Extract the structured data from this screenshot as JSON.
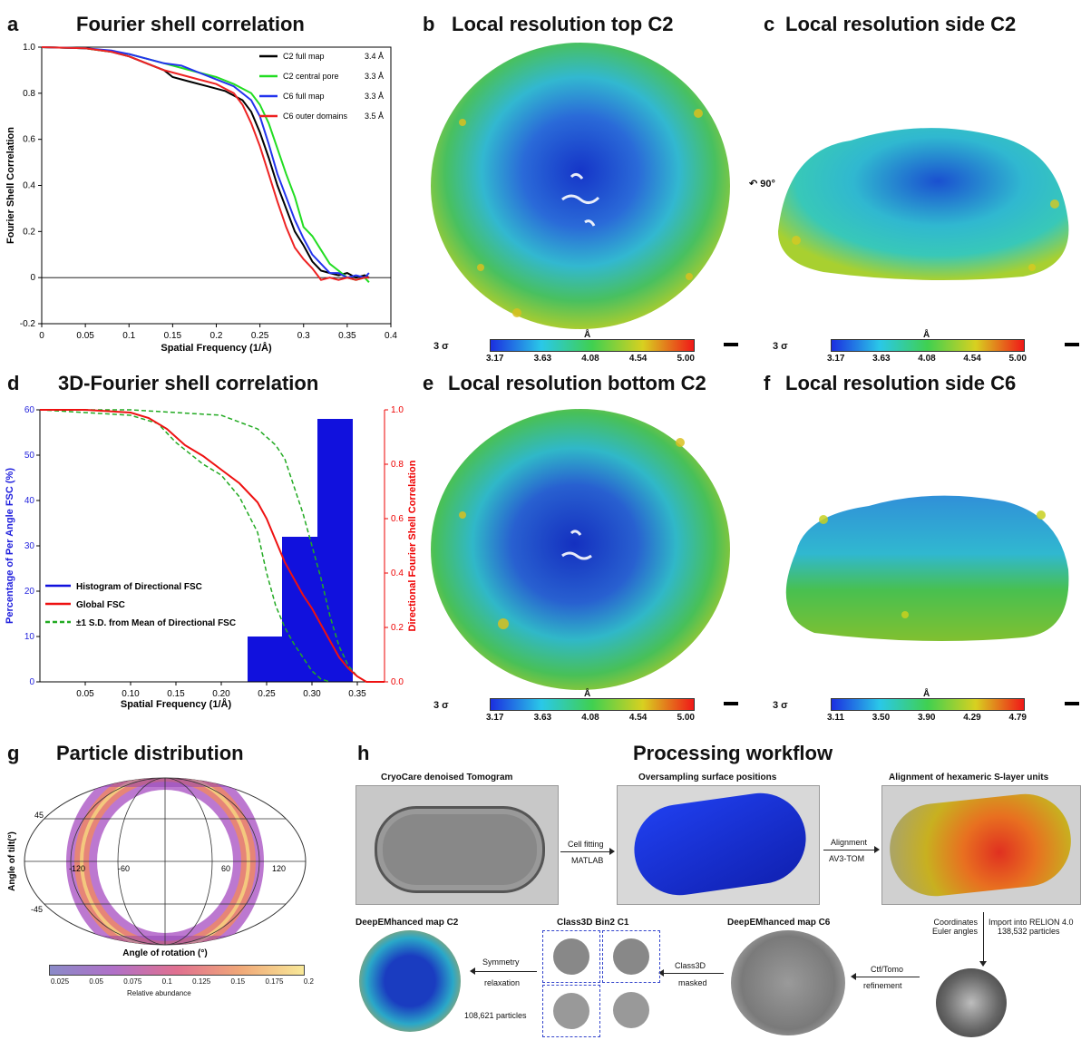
{
  "panels": {
    "a": {
      "letter": "a",
      "title": "Fourier shell correlation"
    },
    "b": {
      "letter": "b",
      "title": "Local resolution top C2"
    },
    "c": {
      "letter": "c",
      "title": "Local resolution side C2"
    },
    "d": {
      "letter": "d",
      "title": "3D-Fourier shell correlation"
    },
    "e": {
      "letter": "e",
      "title": "Local resolution bottom C2"
    },
    "f": {
      "letter": "f",
      "title": "Local resolution side C6"
    },
    "g": {
      "letter": "g",
      "title": "Particle distribution"
    },
    "h": {
      "letter": "h",
      "title": "Processing workflow"
    }
  },
  "chart_data": [
    {
      "id": "a",
      "type": "line",
      "title": "Fourier shell correlation",
      "xlabel": "Spatial Frequency (1/Å)",
      "ylabel": "Fourier Shell Correlation",
      "xlim": [
        0,
        0.4
      ],
      "ylim": [
        -0.2,
        1.0
      ],
      "xticks": [
        "0",
        "0.05",
        "0.1",
        "0.15",
        "0.2",
        "0.25",
        "0.3",
        "0.35",
        "0.4"
      ],
      "yticks": [
        "-0.2",
        "0",
        "0.2",
        "0.4",
        "0.6",
        "0.8",
        "1.0"
      ],
      "legend_position": "top-right",
      "series": [
        {
          "name": "C2 full map",
          "resolution": "3.4 Å",
          "color": "#000000",
          "x": [
            0,
            0.05,
            0.08,
            0.1,
            0.12,
            0.14,
            0.15,
            0.17,
            0.19,
            0.21,
            0.23,
            0.24,
            0.25,
            0.26,
            0.27,
            0.28,
            0.29,
            0.3,
            0.31,
            0.32,
            0.33,
            0.34,
            0.35,
            0.36,
            0.37,
            0.375
          ],
          "y": [
            1.0,
            0.995,
            0.98,
            0.96,
            0.93,
            0.9,
            0.87,
            0.85,
            0.83,
            0.81,
            0.77,
            0.72,
            0.63,
            0.52,
            0.4,
            0.3,
            0.2,
            0.14,
            0.07,
            0.03,
            0.02,
            0.01,
            0.02,
            0.0,
            0.01,
            0.0
          ]
        },
        {
          "name": "C2 central pore",
          "resolution": "3.3 Å",
          "color": "#22dd22",
          "x": [
            0,
            0.05,
            0.08,
            0.1,
            0.12,
            0.14,
            0.16,
            0.18,
            0.2,
            0.22,
            0.24,
            0.25,
            0.26,
            0.27,
            0.28,
            0.29,
            0.3,
            0.31,
            0.32,
            0.33,
            0.34,
            0.35,
            0.36,
            0.37,
            0.375
          ],
          "y": [
            1.0,
            0.995,
            0.98,
            0.97,
            0.95,
            0.93,
            0.91,
            0.89,
            0.87,
            0.84,
            0.8,
            0.75,
            0.67,
            0.56,
            0.45,
            0.35,
            0.22,
            0.18,
            0.12,
            0.06,
            0.03,
            0.0,
            -0.01,
            0.0,
            -0.02
          ]
        },
        {
          "name": "C6 full map",
          "resolution": "3.3 Å",
          "color": "#2233ee",
          "x": [
            0,
            0.05,
            0.08,
            0.1,
            0.12,
            0.14,
            0.16,
            0.18,
            0.2,
            0.22,
            0.24,
            0.25,
            0.26,
            0.27,
            0.28,
            0.29,
            0.3,
            0.31,
            0.32,
            0.33,
            0.34,
            0.35,
            0.36,
            0.37,
            0.375
          ],
          "y": [
            1.0,
            0.995,
            0.985,
            0.97,
            0.95,
            0.93,
            0.92,
            0.89,
            0.86,
            0.83,
            0.77,
            0.7,
            0.58,
            0.45,
            0.35,
            0.25,
            0.17,
            0.1,
            0.06,
            0.02,
            0.02,
            0.0,
            0.01,
            0.0,
            0.02
          ]
        },
        {
          "name": "C6 outer domains",
          "resolution": "3.5 Å",
          "color": "#ee2222",
          "x": [
            0,
            0.05,
            0.08,
            0.1,
            0.12,
            0.14,
            0.16,
            0.18,
            0.2,
            0.22,
            0.23,
            0.24,
            0.25,
            0.26,
            0.27,
            0.28,
            0.29,
            0.3,
            0.31,
            0.32,
            0.33,
            0.34,
            0.35,
            0.36,
            0.37,
            0.375
          ],
          "y": [
            1.0,
            0.995,
            0.98,
            0.96,
            0.93,
            0.9,
            0.88,
            0.86,
            0.84,
            0.8,
            0.75,
            0.67,
            0.57,
            0.45,
            0.33,
            0.22,
            0.13,
            0.08,
            0.04,
            -0.01,
            0.0,
            -0.01,
            0.0,
            -0.01,
            0.0,
            0.0
          ]
        }
      ]
    },
    {
      "id": "d",
      "type": "bar",
      "title": "3D-Fourier shell correlation",
      "xlabel": "Spatial Frequency (1/Å)",
      "ylabel_left": "Percentage of Per Angle FSC (%)",
      "ylabel_right": "Directional Fourier Shell Correlation",
      "xlim": [
        0,
        0.38
      ],
      "ylim_left": [
        0,
        60
      ],
      "ylim_right": [
        0,
        1.0
      ],
      "xticks": [
        "0.05",
        "0.10",
        "0.15",
        "0.20",
        "0.25",
        "0.30",
        "0.35"
      ],
      "yticks_left": [
        "0",
        "10",
        "20",
        "30",
        "40",
        "50",
        "60"
      ],
      "yticks_right": [
        "0.0",
        "0.2",
        "0.4",
        "0.6",
        "0.8",
        "1.0"
      ],
      "legend_position": "bottom-left",
      "histogram": {
        "name": "Histogram of Directional FSC",
        "color": "#1111dd",
        "bins": [
          [
            0.229,
            0.267,
            10
          ],
          [
            0.267,
            0.306,
            32
          ],
          [
            0.306,
            0.345,
            58
          ]
        ]
      },
      "global_fsc": {
        "name": "Global FSC",
        "color": "#ee1111",
        "x": [
          0,
          0.05,
          0.1,
          0.12,
          0.14,
          0.16,
          0.18,
          0.2,
          0.22,
          0.24,
          0.25,
          0.26,
          0.27,
          0.28,
          0.29,
          0.3,
          0.31,
          0.32,
          0.33,
          0.34,
          0.35,
          0.36,
          0.37,
          0.38
        ],
        "y": [
          1.0,
          1.0,
          0.99,
          0.97,
          0.93,
          0.87,
          0.83,
          0.78,
          0.73,
          0.66,
          0.6,
          0.52,
          0.44,
          0.38,
          0.32,
          0.27,
          0.21,
          0.15,
          0.09,
          0.05,
          0.02,
          0.0,
          0.0,
          0.0
        ]
      },
      "sd_band": {
        "name": "±1 S.D. from Mean of Directional FSC",
        "color": "#22aa22",
        "upper_x": [
          0,
          0.1,
          0.15,
          0.2,
          0.24,
          0.26,
          0.27,
          0.28,
          0.29,
          0.3,
          0.31,
          0.32,
          0.33,
          0.34,
          0.35,
          0.36
        ],
        "upper_y": [
          1.0,
          1.0,
          0.99,
          0.98,
          0.93,
          0.87,
          0.82,
          0.72,
          0.62,
          0.5,
          0.38,
          0.24,
          0.13,
          0.06,
          0.02,
          0.0
        ],
        "lower_x": [
          0,
          0.05,
          0.1,
          0.13,
          0.15,
          0.18,
          0.2,
          0.22,
          0.24,
          0.25,
          0.26,
          0.27,
          0.28,
          0.29,
          0.3,
          0.31,
          0.32
        ],
        "lower_y": [
          1.0,
          0.99,
          0.98,
          0.95,
          0.88,
          0.8,
          0.76,
          0.68,
          0.55,
          0.4,
          0.28,
          0.2,
          0.14,
          0.09,
          0.04,
          0.01,
          0.0
        ]
      }
    },
    {
      "id": "g",
      "type": "heatmap",
      "title": "Particle distribution",
      "xlabel": "Angle of rotation (°)",
      "ylabel": "Angle of tilt(°)",
      "lon_labels": [
        "-120",
        "-60",
        "60",
        "120"
      ],
      "lat_labels": [
        "45",
        "-45"
      ],
      "colorbar_label": "Relative abundance",
      "colorbar_ticks": [
        "0.025",
        "0.05",
        "0.075",
        "0.1",
        "0.125",
        "0.15",
        "0.175",
        "0.2"
      ]
    }
  ],
  "maps": {
    "b": {
      "sigma": "3 σ",
      "unit": "Å",
      "ticks": [
        "3.17",
        "3.63",
        "4.08",
        "4.54",
        "5.00"
      ]
    },
    "c": {
      "sigma": "3 σ",
      "unit": "Å",
      "ticks": [
        "3.17",
        "3.63",
        "4.08",
        "4.54",
        "5.00"
      ],
      "rotation": "90°"
    },
    "e": {
      "sigma": "3 σ",
      "unit": "Å",
      "ticks": [
        "3.17",
        "3.63",
        "4.08",
        "4.54",
        "5.00"
      ]
    },
    "f": {
      "sigma": "3 σ",
      "unit": "Å",
      "ticks": [
        "3.11",
        "3.50",
        "3.90",
        "4.29",
        "4.79"
      ]
    }
  },
  "workflow": {
    "step1": "CryoCare denoised Tomogram",
    "step2": "Oversampling surface positions",
    "step3": "Alignment of hexameric S-layer units",
    "arrow1_top": "Cell fitting",
    "arrow1_bottom": "MATLAB",
    "arrow2_top": "Alignment",
    "arrow2_bottom": "AV3-TOM",
    "down_left_1": "Coordinates",
    "down_left_2": "Euler angles",
    "down_right_1": "Import into RELION 4.0",
    "down_right_2": "138,532 particles",
    "ctf_top": "Ctf/Tomo",
    "ctf_bottom": "refinement",
    "map_c6": "DeepEMhanced map C6",
    "class3d_top": "Class3D",
    "class3d_bottom": "masked",
    "class3d_bin": "Class3D Bin2 C1",
    "particles_108": "108,621 particles",
    "sym_top": "Symmetry",
    "sym_bottom": "relaxation",
    "map_c2": "DeepEMhanced map C2"
  },
  "colors": {
    "res_blue": "#1a3fd0",
    "res_cyan": "#30c8d8",
    "res_green": "#50c040",
    "res_yellow": "#e0d020",
    "res_red": "#e83010",
    "cell_blue": "#1530e0"
  }
}
